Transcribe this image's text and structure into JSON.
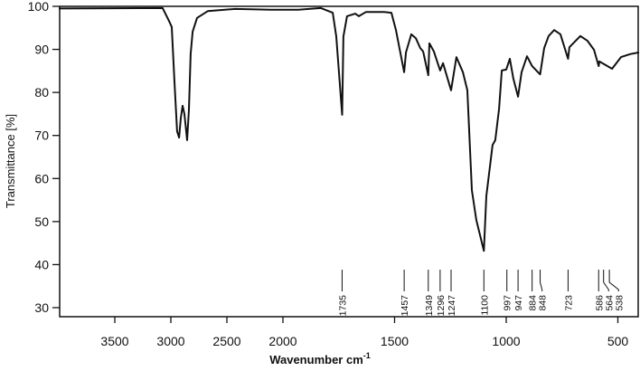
{
  "chart_data": {
    "type": "line",
    "title": "",
    "xlabel": "Wavenumber cm",
    "xlabel_superscript": "-1",
    "ylabel": "Transmittance [%]",
    "xlim": [
      4000,
      400
    ],
    "ylim": [
      27.8,
      100
    ],
    "x_axis_note": "reversed, broken scale (compressed above 2000)",
    "x_ticks": [
      3500,
      3000,
      2500,
      2000,
      1500,
      1000,
      500
    ],
    "y_ticks": [
      30,
      40,
      50,
      60,
      70,
      80,
      90,
      100
    ],
    "grid": false,
    "legend": "none",
    "line_color": "#111111",
    "series": [
      {
        "x": [
          4000,
          3073,
          3016,
          2992,
          2968,
          2944,
          2927,
          2911,
          2895,
          2879,
          2855,
          2839,
          2823,
          2806,
          2766,
          2669,
          2427,
          2105,
          1931,
          1830,
          1777,
          1761,
          1735,
          1729,
          1713,
          1676,
          1660,
          1628,
          1547,
          1514,
          1494,
          1457,
          1449,
          1425,
          1405,
          1385,
          1372,
          1349,
          1344,
          1324,
          1296,
          1283,
          1247,
          1223,
          1194,
          1174,
          1154,
          1134,
          1100,
          1089,
          1061,
          1049,
          1032,
          1020,
          1000,
          984,
          968,
          947,
          931,
          907,
          884,
          848,
          830,
          810,
          785,
          757,
          723,
          717,
          668,
          636,
          607,
          586,
          583,
          526,
          486,
          445,
          405
        ],
        "y": [
          99.5,
          99.6,
          96.6,
          95.2,
          82.5,
          71,
          69.5,
          74,
          76.9,
          75,
          68.9,
          76,
          88.9,
          94.1,
          97.3,
          98.9,
          99.4,
          99.2,
          99.2,
          99.6,
          98.5,
          93,
          74.8,
          93,
          97.7,
          98.3,
          97.7,
          98.7,
          98.7,
          98.5,
          94.5,
          84.7,
          89.3,
          93.5,
          92.6,
          90.3,
          89.5,
          84,
          91.4,
          89.5,
          85.1,
          86.8,
          80.5,
          88.2,
          84.7,
          80.5,
          57.3,
          50.4,
          43.2,
          55.9,
          67.8,
          68.9,
          76.2,
          85.1,
          85.3,
          87.8,
          83.2,
          79,
          84.7,
          88.4,
          86.1,
          84.2,
          90.3,
          93.1,
          94.5,
          93.5,
          87.8,
          90.5,
          93.1,
          92,
          89.9,
          86.1,
          87.2,
          85.5,
          88.2,
          88.9,
          89.3
        ]
      }
    ],
    "annotations": [
      "1735",
      "1457",
      "1349",
      "1296",
      "1247",
      "1100",
      "997",
      "947",
      "884",
      "848",
      "723",
      "586",
      "564",
      "538"
    ]
  }
}
